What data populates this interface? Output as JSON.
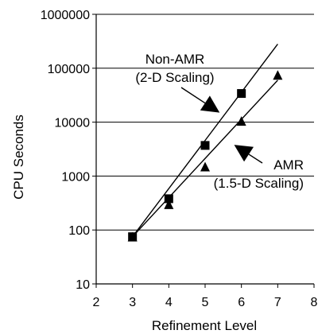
{
  "chart_data": {
    "type": "scatter",
    "xlabel": "Refinement Level",
    "ylabel": "CPU Seconds",
    "x_ticks": [
      "2",
      "3",
      "4",
      "5",
      "6",
      "7",
      "8"
    ],
    "y_ticks": [
      "10",
      "100",
      "1000",
      "10000",
      "100000",
      "1000000"
    ],
    "xlim": [
      2,
      8
    ],
    "ylim": [
      10,
      1000000
    ],
    "y_scale": "log",
    "grid": "horizontal",
    "legend": "none",
    "series": [
      {
        "marker": "square",
        "points": [
          [
            3,
            75
          ],
          [
            4,
            380
          ],
          [
            5,
            3700
          ],
          [
            6,
            34000
          ]
        ],
        "fit_line": [
          [
            3,
            75
          ],
          [
            7,
            280000
          ]
        ]
      },
      {
        "marker": "triangle",
        "points": [
          [
            3,
            75
          ],
          [
            4,
            300
          ],
          [
            5,
            1500
          ],
          [
            6,
            10500
          ],
          [
            7,
            75000
          ]
        ],
        "fit_line": [
          [
            3,
            75
          ],
          [
            7,
            60000
          ]
        ]
      }
    ],
    "annotations": [
      {
        "lines": [
          "Non-AMR",
          "(2-D Scaling)"
        ],
        "arrow_to": [
          5.4,
          15000
        ]
      },
      {
        "lines": [
          "AMR",
          "(1.5-D Scaling)"
        ],
        "arrow_to": [
          5.8,
          3800
        ]
      }
    ]
  }
}
